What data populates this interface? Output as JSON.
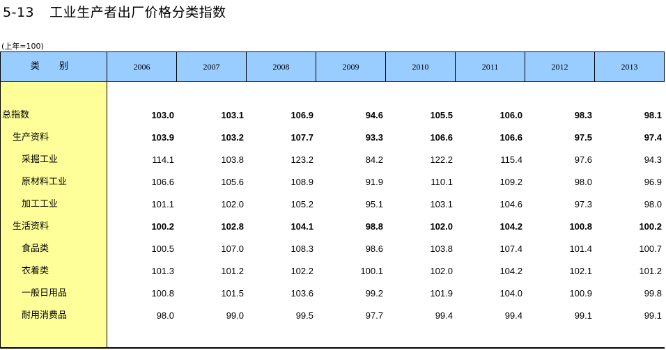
{
  "title": {
    "number": "5-13",
    "text": "工业生产者出厂价格分类指数"
  },
  "unit": "(上年=100)",
  "header": {
    "category": "类 别",
    "years": [
      "2006",
      "2007",
      "2008",
      "2009",
      "2010",
      "2011",
      "2012",
      "2013"
    ]
  },
  "rows": [
    {
      "label": "总指数",
      "indent": 0,
      "bold": true,
      "values": [
        "103.0",
        "103.1",
        "106.9",
        "94.6",
        "105.5",
        "106.0",
        "98.3",
        "98.1"
      ]
    },
    {
      "label": "生产资料",
      "indent": 1,
      "bold": true,
      "values": [
        "103.9",
        "103.2",
        "107.7",
        "93.3",
        "106.6",
        "106.6",
        "97.5",
        "97.4"
      ]
    },
    {
      "label": "采掘工业",
      "indent": 2,
      "bold": false,
      "values": [
        "114.1",
        "103.8",
        "123.2",
        "84.2",
        "122.2",
        "115.4",
        "97.6",
        "94.3"
      ]
    },
    {
      "label": "原材料工业",
      "indent": 2,
      "bold": false,
      "values": [
        "106.6",
        "105.6",
        "108.9",
        "91.9",
        "110.1",
        "109.2",
        "98.0",
        "96.9"
      ]
    },
    {
      "label": "加工工业",
      "indent": 2,
      "bold": false,
      "values": [
        "101.1",
        "102.0",
        "105.2",
        "95.1",
        "103.1",
        "104.6",
        "97.3",
        "98.0"
      ]
    },
    {
      "label": "生活资料",
      "indent": 1,
      "bold": true,
      "values": [
        "100.2",
        "102.8",
        "104.1",
        "98.8",
        "102.0",
        "104.2",
        "100.8",
        "100.2"
      ]
    },
    {
      "label": "食品类",
      "indent": 2,
      "bold": false,
      "values": [
        "100.5",
        "107.0",
        "108.3",
        "98.6",
        "103.8",
        "107.4",
        "101.4",
        "100.7"
      ]
    },
    {
      "label": "衣着类",
      "indent": 2,
      "bold": false,
      "values": [
        "101.3",
        "101.2",
        "102.2",
        "100.1",
        "102.0",
        "104.2",
        "102.1",
        "101.2"
      ]
    },
    {
      "label": "一般日用品",
      "indent": 2,
      "bold": false,
      "values": [
        "100.8",
        "101.5",
        "103.6",
        "99.2",
        "101.9",
        "104.0",
        "100.9",
        "99.8"
      ]
    },
    {
      "label": "耐用消费品",
      "indent": 2,
      "bold": false,
      "values": [
        "98.0",
        "99.0",
        "99.5",
        "97.7",
        "99.4",
        "99.4",
        "99.1",
        "99.1"
      ]
    }
  ]
}
